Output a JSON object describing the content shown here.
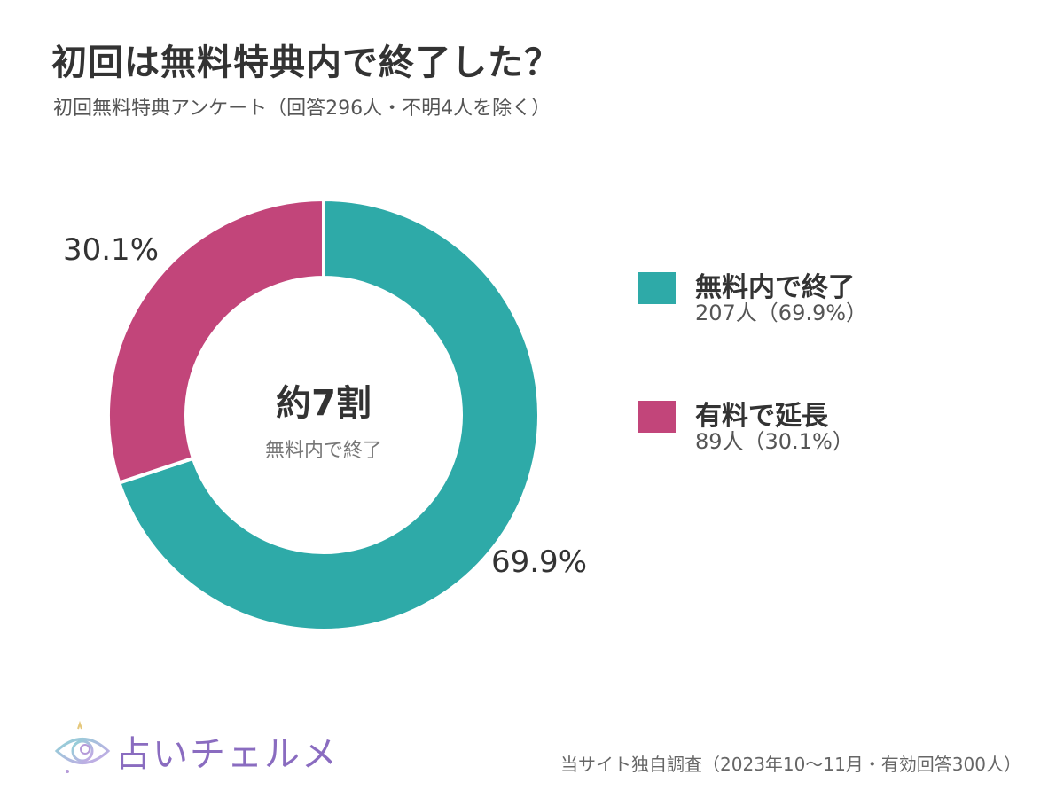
{
  "header": {
    "title": "初回は無料特典内で終了した？",
    "subtitle": "初回無料特典アンケート（回答296人・不明4人を除く）"
  },
  "chart_data": {
    "type": "pie",
    "donut": true,
    "center_label": "約7割",
    "center_sublabel": "無料内で終了",
    "slices": [
      {
        "name": "無料内で終了",
        "value": 69.9,
        "count_label": "207人（69.9%）",
        "pct_label": "69.9%",
        "color": "#2eaaa8"
      },
      {
        "name": "有料で延長",
        "value": 30.1,
        "count_label": "89人（30.1%）",
        "pct_label": "30.1%",
        "color": "#c2457a"
      }
    ],
    "legend_position": "right"
  },
  "footer": {
    "note": "当サイト独自調査（2023年10〜11月・有効回答300人）",
    "logo_text": "占いチェルメ"
  }
}
